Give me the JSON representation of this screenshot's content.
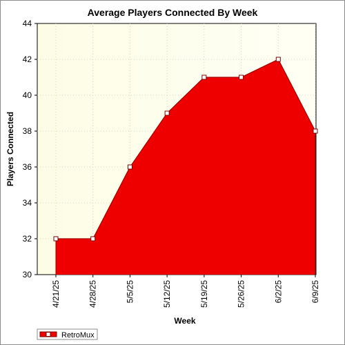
{
  "chart_data": {
    "type": "area",
    "title": "Average Players Connected By Week",
    "xlabel": "Week",
    "ylabel": "Players Connected",
    "categories": [
      "4/21/25",
      "4/28/25",
      "5/5/25",
      "5/12/25",
      "5/19/25",
      "5/26/25",
      "6/2/25",
      "6/9/25"
    ],
    "series": [
      {
        "name": "RetroMux",
        "values": [
          32,
          32,
          36,
          39,
          41,
          41,
          42,
          38
        ]
      }
    ],
    "ylim": [
      30,
      44
    ],
    "yticks": [
      30,
      32,
      34,
      36,
      38,
      40,
      42,
      44
    ],
    "grid": true,
    "legend": "bottom-left",
    "colors": {
      "fill": "#ee0000",
      "line": "#a40000",
      "marker_fill": "#ffffff",
      "marker_stroke": "#7a0000",
      "plot_bg_from": "#fdfde6",
      "plot_bg_to": "#fffff5",
      "grid": "#d8d8c0"
    }
  }
}
